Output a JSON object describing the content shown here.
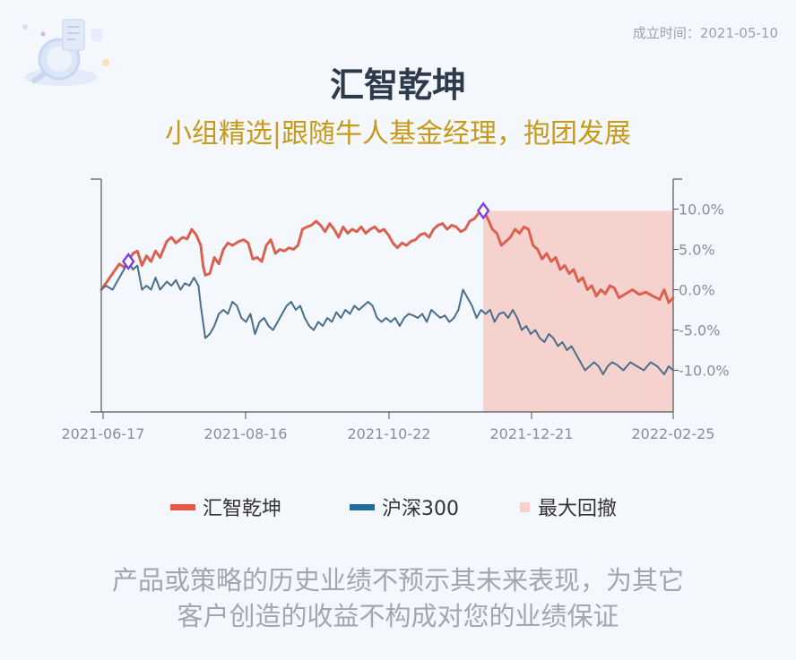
{
  "header": {
    "founded_text": "成立时间：2021-05-10",
    "title": "汇智乾坤",
    "subtitle": "小组精选|跟随牛人基金经理，抱团发展"
  },
  "legend": {
    "fund_label": "汇智乾坤",
    "index_label": "沪深300",
    "drawdown_label": "最大回撤"
  },
  "disclaimer": {
    "line1": "产品或策略的历史业绩不预示其未来表现，为其它",
    "line2": "客户创造的收益不构成对您的业绩保证"
  },
  "colors": {
    "fund": "#d9614e",
    "index": "#4a6f8a",
    "drawdown_fill": "#f6d2ce",
    "legend_fund": "#e8564a",
    "legend_index": "#1e6c9a",
    "legend_drawdown": "#f6d2ce",
    "marker": "#7b3fe4",
    "axis": "#555555",
    "tick_label": "#8a8f96"
  },
  "chart_data": {
    "type": "line",
    "x_tick_labels": [
      "2021-06-17",
      "2021-08-16",
      "2021-10-22",
      "2021-12-21",
      "2022-02-25"
    ],
    "x_start": "2021-06-17",
    "x_end": "2022-02-25",
    "y_tick_labels": [
      "10.0%",
      "5.0%",
      "0.0%",
      "-5.0%",
      "-10.0%"
    ],
    "y_ticks": [
      10,
      5,
      0,
      -5,
      -10
    ],
    "ylim": [
      -15,
      14
    ],
    "grid": false,
    "series": [
      {
        "name": "汇智乾坤",
        "color_key": "fund",
        "points": [
          [
            "2021-06-17",
            0.0
          ],
          [
            "2021-06-20",
            1.2
          ],
          [
            "2021-06-23",
            2.4
          ],
          [
            "2021-06-25",
            3.2
          ],
          [
            "2021-06-27",
            2.8
          ],
          [
            "2021-06-29",
            3.5
          ],
          [
            "2021-07-01",
            4.5
          ],
          [
            "2021-07-03",
            4.8
          ],
          [
            "2021-07-05",
            3.0
          ],
          [
            "2021-07-07",
            4.2
          ],
          [
            "2021-07-09",
            3.5
          ],
          [
            "2021-07-11",
            4.8
          ],
          [
            "2021-07-13",
            4.0
          ],
          [
            "2021-07-16",
            6.0
          ],
          [
            "2021-07-18",
            6.5
          ],
          [
            "2021-07-20",
            5.8
          ],
          [
            "2021-07-23",
            6.5
          ],
          [
            "2021-07-25",
            6.3
          ],
          [
            "2021-07-27",
            7.5
          ],
          [
            "2021-07-29",
            6.8
          ],
          [
            "2021-07-31",
            5.5
          ],
          [
            "2021-08-01",
            3.0
          ],
          [
            "2021-08-02",
            1.8
          ],
          [
            "2021-08-04",
            2.0
          ],
          [
            "2021-08-06",
            4.0
          ],
          [
            "2021-08-08",
            3.2
          ],
          [
            "2021-08-10",
            5.0
          ],
          [
            "2021-08-12",
            5.8
          ],
          [
            "2021-08-14",
            5.5
          ],
          [
            "2021-08-17",
            6.0
          ],
          [
            "2021-08-19",
            6.2
          ],
          [
            "2021-08-21",
            5.8
          ],
          [
            "2021-08-23",
            3.8
          ],
          [
            "2021-08-25",
            4.0
          ],
          [
            "2021-08-27",
            3.5
          ],
          [
            "2021-08-29",
            5.5
          ],
          [
            "2021-08-31",
            6.2
          ],
          [
            "2021-09-02",
            4.5
          ],
          [
            "2021-09-04",
            5.0
          ],
          [
            "2021-09-06",
            4.8
          ],
          [
            "2021-09-08",
            5.2
          ],
          [
            "2021-09-10",
            5.0
          ],
          [
            "2021-09-12",
            5.5
          ],
          [
            "2021-09-14",
            7.5
          ],
          [
            "2021-09-16",
            7.8
          ],
          [
            "2021-09-18",
            8.0
          ],
          [
            "2021-09-20",
            8.5
          ],
          [
            "2021-09-22",
            8.0
          ],
          [
            "2021-09-24",
            7.2
          ],
          [
            "2021-09-26",
            8.2
          ],
          [
            "2021-09-28",
            7.5
          ],
          [
            "2021-09-30",
            6.5
          ],
          [
            "2021-10-02",
            7.8
          ],
          [
            "2021-10-04",
            7.0
          ],
          [
            "2021-10-06",
            7.5
          ],
          [
            "2021-10-08",
            7.2
          ],
          [
            "2021-10-10",
            7.8
          ],
          [
            "2021-10-12",
            7.0
          ],
          [
            "2021-10-14",
            7.5
          ],
          [
            "2021-10-16",
            7.8
          ],
          [
            "2021-10-18",
            7.2
          ],
          [
            "2021-10-20",
            7.5
          ],
          [
            "2021-10-22",
            6.8
          ],
          [
            "2021-10-24",
            5.8
          ],
          [
            "2021-10-26",
            5.2
          ],
          [
            "2021-10-28",
            5.8
          ],
          [
            "2021-10-30",
            5.5
          ],
          [
            "2021-11-01",
            6.0
          ],
          [
            "2021-11-03",
            6.2
          ],
          [
            "2021-11-05",
            6.8
          ],
          [
            "2021-11-07",
            7.0
          ],
          [
            "2021-11-09",
            6.5
          ],
          [
            "2021-11-11",
            7.5
          ],
          [
            "2021-11-13",
            8.0
          ],
          [
            "2021-11-15",
            8.2
          ],
          [
            "2021-11-17",
            7.5
          ],
          [
            "2021-11-19",
            8.0
          ],
          [
            "2021-11-21",
            7.8
          ],
          [
            "2021-11-23",
            7.2
          ],
          [
            "2021-11-25",
            7.5
          ],
          [
            "2021-11-27",
            8.5
          ],
          [
            "2021-11-29",
            8.8
          ],
          [
            "2021-12-01",
            9.5
          ],
          [
            "2021-12-03",
            9.8
          ],
          [
            "2021-12-05",
            8.8
          ],
          [
            "2021-12-07",
            7.5
          ],
          [
            "2021-12-09",
            7.0
          ],
          [
            "2021-12-11",
            5.5
          ],
          [
            "2021-12-13",
            6.0
          ],
          [
            "2021-12-15",
            6.5
          ],
          [
            "2021-12-17",
            7.5
          ],
          [
            "2021-12-19",
            7.0
          ],
          [
            "2021-12-21",
            7.8
          ],
          [
            "2021-12-23",
            7.5
          ],
          [
            "2021-12-25",
            5.5
          ],
          [
            "2021-12-27",
            5.0
          ],
          [
            "2021-12-29",
            3.8
          ],
          [
            "2021-12-31",
            4.5
          ],
          [
            "2022-01-02",
            3.5
          ],
          [
            "2022-01-04",
            4.0
          ],
          [
            "2022-01-06",
            2.5
          ],
          [
            "2022-01-08",
            3.0
          ],
          [
            "2022-01-10",
            2.0
          ],
          [
            "2022-01-12",
            2.5
          ],
          [
            "2022-01-14",
            1.0
          ],
          [
            "2022-01-16",
            1.5
          ],
          [
            "2022-01-18",
            0.0
          ],
          [
            "2022-01-20",
            0.5
          ],
          [
            "2022-01-22",
            -0.8
          ],
          [
            "2022-01-24",
            0.0
          ],
          [
            "2022-01-26",
            -0.5
          ],
          [
            "2022-01-28",
            0.5
          ],
          [
            "2022-01-30",
            0.2
          ],
          [
            "2022-02-01",
            -1.0
          ],
          [
            "2022-02-04",
            -0.5
          ],
          [
            "2022-02-07",
            0.0
          ],
          [
            "2022-02-10",
            -0.6
          ],
          [
            "2022-02-13",
            -0.3
          ],
          [
            "2022-02-16",
            -0.8
          ],
          [
            "2022-02-19",
            -1.2
          ],
          [
            "2022-02-21",
            0.0
          ],
          [
            "2022-02-23",
            -1.6
          ],
          [
            "2022-02-25",
            -1.0
          ]
        ]
      },
      {
        "name": "沪深300",
        "color_key": "index",
        "points": [
          [
            "2021-06-17",
            0.0
          ],
          [
            "2021-06-19",
            0.5
          ],
          [
            "2021-06-22",
            0.0
          ],
          [
            "2021-06-25",
            1.5
          ],
          [
            "2021-06-27",
            2.5
          ],
          [
            "2021-06-29",
            3.5
          ],
          [
            "2021-07-01",
            2.5
          ],
          [
            "2021-07-03",
            3.0
          ],
          [
            "2021-07-05",
            0.0
          ],
          [
            "2021-07-07",
            0.5
          ],
          [
            "2021-07-09",
            0.0
          ],
          [
            "2021-07-11",
            1.5
          ],
          [
            "2021-07-13",
            0.0
          ],
          [
            "2021-07-16",
            1.0
          ],
          [
            "2021-07-18",
            0.5
          ],
          [
            "2021-07-20",
            1.2
          ],
          [
            "2021-07-22",
            0.0
          ],
          [
            "2021-07-24",
            0.8
          ],
          [
            "2021-07-26",
            0.5
          ],
          [
            "2021-07-28",
            1.5
          ],
          [
            "2021-07-30",
            0.5
          ],
          [
            "2021-07-31",
            -2.0
          ],
          [
            "2021-08-02",
            -6.0
          ],
          [
            "2021-08-04",
            -5.5
          ],
          [
            "2021-08-06",
            -4.5
          ],
          [
            "2021-08-08",
            -3.0
          ],
          [
            "2021-08-10",
            -2.5
          ],
          [
            "2021-08-12",
            -3.0
          ],
          [
            "2021-08-14",
            -1.5
          ],
          [
            "2021-08-16",
            -2.0
          ],
          [
            "2021-08-18",
            -3.5
          ],
          [
            "2021-08-20",
            -4.0
          ],
          [
            "2021-08-22",
            -3.0
          ],
          [
            "2021-08-24",
            -5.5
          ],
          [
            "2021-08-26",
            -4.0
          ],
          [
            "2021-08-28",
            -3.5
          ],
          [
            "2021-08-30",
            -4.5
          ],
          [
            "2021-09-01",
            -5.0
          ],
          [
            "2021-09-03",
            -4.0
          ],
          [
            "2021-09-05",
            -3.0
          ],
          [
            "2021-09-07",
            -2.0
          ],
          [
            "2021-09-09",
            -1.5
          ],
          [
            "2021-09-11",
            -2.5
          ],
          [
            "2021-09-13",
            -2.0
          ],
          [
            "2021-09-15",
            -3.5
          ],
          [
            "2021-09-17",
            -4.5
          ],
          [
            "2021-09-19",
            -5.0
          ],
          [
            "2021-09-21",
            -4.0
          ],
          [
            "2021-09-23",
            -4.5
          ],
          [
            "2021-09-25",
            -3.5
          ],
          [
            "2021-09-27",
            -4.0
          ],
          [
            "2021-09-29",
            -2.8
          ],
          [
            "2021-10-01",
            -3.5
          ],
          [
            "2021-10-03",
            -2.5
          ],
          [
            "2021-10-05",
            -3.0
          ],
          [
            "2021-10-07",
            -2.0
          ],
          [
            "2021-10-09",
            -2.5
          ],
          [
            "2021-10-11",
            -2.0
          ],
          [
            "2021-10-13",
            -1.5
          ],
          [
            "2021-10-15",
            -2.0
          ],
          [
            "2021-10-17",
            -3.5
          ],
          [
            "2021-10-19",
            -4.0
          ],
          [
            "2021-10-21",
            -3.5
          ],
          [
            "2021-10-23",
            -4.0
          ],
          [
            "2021-10-25",
            -3.5
          ],
          [
            "2021-10-27",
            -4.5
          ],
          [
            "2021-10-29",
            -3.5
          ],
          [
            "2021-10-31",
            -3.0
          ],
          [
            "2021-11-02",
            -3.2
          ],
          [
            "2021-11-04",
            -3.5
          ],
          [
            "2021-11-06",
            -3.0
          ],
          [
            "2021-11-08",
            -4.0
          ],
          [
            "2021-11-10",
            -2.5
          ],
          [
            "2021-11-12",
            -3.0
          ],
          [
            "2021-11-14",
            -3.5
          ],
          [
            "2021-11-16",
            -3.2
          ],
          [
            "2021-11-18",
            -4.0
          ],
          [
            "2021-11-20",
            -3.5
          ],
          [
            "2021-11-22",
            -2.5
          ],
          [
            "2021-11-24",
            0.0
          ],
          [
            "2021-11-26",
            -1.0
          ],
          [
            "2021-11-28",
            -2.0
          ],
          [
            "2021-11-30",
            -3.5
          ],
          [
            "2021-12-02",
            -2.5
          ],
          [
            "2021-12-04",
            -3.0
          ],
          [
            "2021-12-06",
            -2.5
          ],
          [
            "2021-12-08",
            -4.0
          ],
          [
            "2021-12-10",
            -3.0
          ],
          [
            "2021-12-12",
            -2.8
          ],
          [
            "2021-12-14",
            -3.5
          ],
          [
            "2021-12-16",
            -2.5
          ],
          [
            "2021-12-18",
            -3.5
          ],
          [
            "2021-12-20",
            -5.0
          ],
          [
            "2021-12-22",
            -4.5
          ],
          [
            "2021-12-24",
            -5.5
          ],
          [
            "2021-12-26",
            -5.0
          ],
          [
            "2021-12-28",
            -6.0
          ],
          [
            "2021-12-30",
            -6.5
          ],
          [
            "2022-01-01",
            -5.5
          ],
          [
            "2022-01-03",
            -6.0
          ],
          [
            "2022-01-05",
            -7.0
          ],
          [
            "2022-01-07",
            -6.5
          ],
          [
            "2022-01-09",
            -7.5
          ],
          [
            "2022-01-11",
            -7.0
          ],
          [
            "2022-01-13",
            -8.0
          ],
          [
            "2022-01-15",
            -9.0
          ],
          [
            "2022-01-17",
            -10.0
          ],
          [
            "2022-01-19",
            -9.5
          ],
          [
            "2022-01-21",
            -9.0
          ],
          [
            "2022-01-23",
            -9.5
          ],
          [
            "2022-01-25",
            -10.5
          ],
          [
            "2022-01-27",
            -9.5
          ],
          [
            "2022-01-29",
            -9.0
          ],
          [
            "2022-01-31",
            -9.3
          ],
          [
            "2022-02-03",
            -10.0
          ],
          [
            "2022-02-06",
            -9.0
          ],
          [
            "2022-02-09",
            -9.5
          ],
          [
            "2022-02-12",
            -10.0
          ],
          [
            "2022-02-15",
            -9.0
          ],
          [
            "2022-02-18",
            -9.5
          ],
          [
            "2022-02-21",
            -10.5
          ],
          [
            "2022-02-23",
            -9.5
          ],
          [
            "2022-02-25",
            -10.0
          ]
        ]
      }
    ],
    "markers": [
      {
        "series": "汇智乾坤",
        "date": "2021-06-29",
        "value": 3.5,
        "shape": "diamond"
      },
      {
        "series": "汇智乾坤",
        "date": "2021-12-03",
        "value": 9.8,
        "shape": "diamond"
      }
    ],
    "drawdown_region": {
      "start": "2021-12-03",
      "end": "2022-02-25",
      "label": "最大回撤"
    }
  }
}
